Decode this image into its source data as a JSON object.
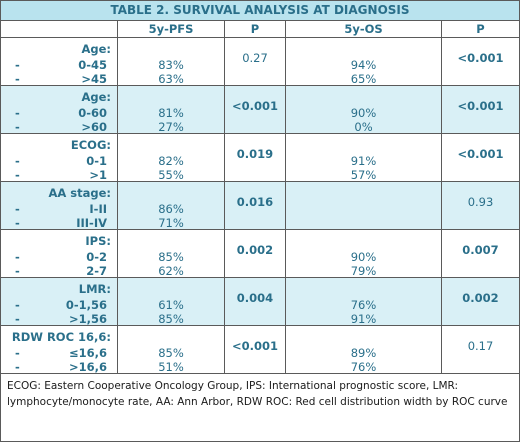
{
  "title": "TABLE 2. SURVIVAL ANALYSIS AT DIAGNOSIS",
  "headers": [
    "",
    "5y-PFS",
    "P",
    "5y-OS",
    "P"
  ],
  "groups": [
    {
      "name": "Age:",
      "rows": [
        {
          "dash": "-",
          "label": "0-45",
          "pfs": "83%",
          "os": "94%"
        },
        {
          "dash": "-",
          "label": ">45",
          "pfs": "63%",
          "os": "65%"
        }
      ],
      "p_pfs": "0.27",
      "p_pfs_bold": false,
      "p_os": "<0.001",
      "p_os_bold": true,
      "shaded": false
    },
    {
      "name": "Age:",
      "rows": [
        {
          "dash": "-",
          "label": "0-60",
          "pfs": "81%",
          "os": "90%"
        },
        {
          "dash": "-",
          "label": ">60",
          "pfs": "27%",
          "os": "0%"
        }
      ],
      "p_pfs": "<0.001",
      "p_pfs_bold": true,
      "p_os": "<0.001",
      "p_os_bold": true,
      "shaded": true
    },
    {
      "name": "ECOG:",
      "rows": [
        {
          "dash": "-",
          "label": "0-1",
          "pfs": "82%",
          "os": "91%"
        },
        {
          "dash": "-",
          "label": ">1",
          "pfs": "55%",
          "os": "57%"
        }
      ],
      "p_pfs": "0.019",
      "p_pfs_bold": true,
      "p_os": "<0.001",
      "p_os_bold": true,
      "shaded": false
    },
    {
      "name": "AA stage:",
      "rows": [
        {
          "dash": "-",
          "label": "I-II",
          "pfs": "86%",
          "os": ""
        },
        {
          "dash": "-",
          "label": "III-IV",
          "pfs": "71%",
          "os": ""
        }
      ],
      "p_pfs": "0.016",
      "p_pfs_bold": true,
      "p_os": "0.93",
      "p_os_bold": false,
      "shaded": true
    },
    {
      "name": "IPS:",
      "rows": [
        {
          "dash": "-",
          "label": "0-2",
          "pfs": "85%",
          "os": "90%"
        },
        {
          "dash": "-",
          "label": "2-7",
          "pfs": "62%",
          "os": "79%"
        }
      ],
      "p_pfs": "0.002",
      "p_pfs_bold": true,
      "p_os": "0.007",
      "p_os_bold": true,
      "shaded": false
    },
    {
      "name": "LMR:",
      "rows": [
        {
          "dash": "-",
          "label": "0-1,56",
          "pfs": "61%",
          "os": "76%"
        },
        {
          "dash": "-",
          "label": ">1,56",
          "pfs": "85%",
          "os": "91%"
        }
      ],
      "p_pfs": "0.004",
      "p_pfs_bold": true,
      "p_os": "0.002",
      "p_os_bold": true,
      "shaded": true
    },
    {
      "name": "RDW ROC 16,6:",
      "rows": [
        {
          "dash": "-",
          "label": "≤16,6",
          "pfs": "85%",
          "os": "89%"
        },
        {
          "dash": "-",
          "label": ">16,6",
          "pfs": "51%",
          "os": "76%"
        }
      ],
      "p_pfs": "<0.001",
      "p_pfs_bold": true,
      "p_os": "0.17",
      "p_os_bold": false,
      "shaded": false
    }
  ],
  "footer": "ECOG: Eastern Cooperative Oncology Group, IPS: International prognostic score, LMR: lymphocyte/monocyte rate, AA: Ann Arbor, RDW ROC: Red cell distribution width by ROC curve",
  "colors": {
    "text": "#2a6f8a",
    "title_bg": "#b9e3ee",
    "shade_bg": "#d9f0f6",
    "border": "#5a5a5a"
  }
}
